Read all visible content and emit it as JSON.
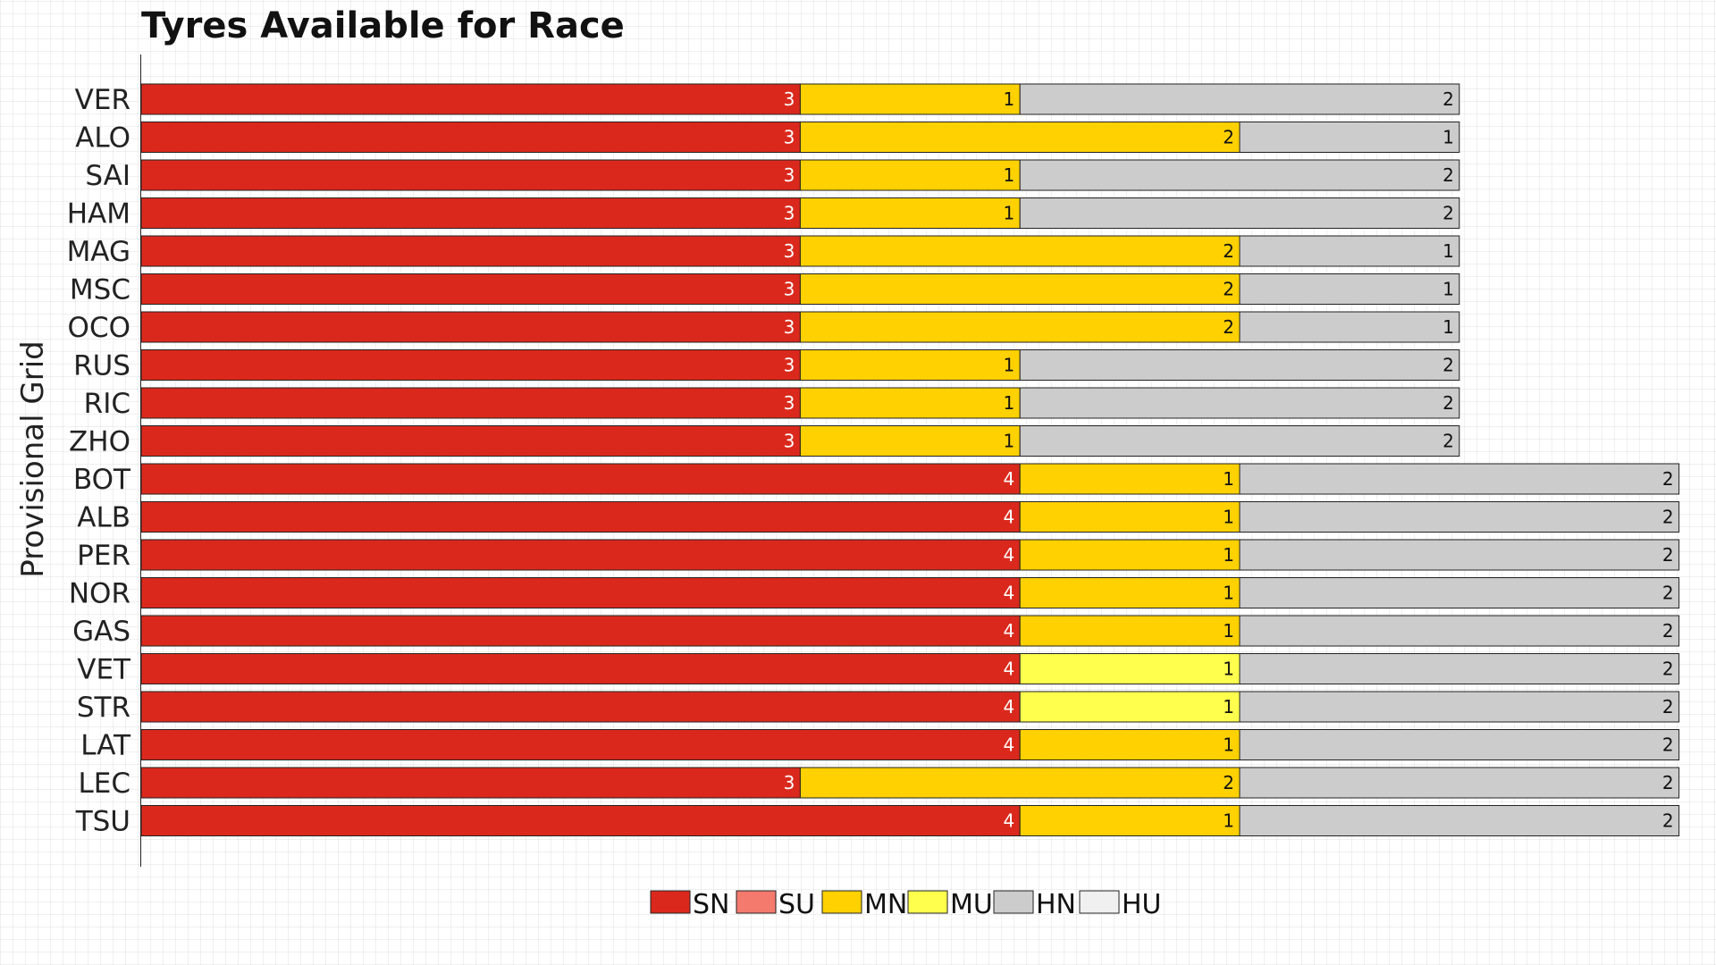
{
  "chart_data": {
    "type": "bar",
    "orientation": "horizontal",
    "stacked": true,
    "title": "Tyres Available for Race",
    "ylabel": "Provisional Grid",
    "xlabel": "",
    "legend_position": "bottom",
    "grid": false,
    "categories": [
      "VER",
      "ALO",
      "SAI",
      "HAM",
      "MAG",
      "MSC",
      "OCO",
      "RUS",
      "RIC",
      "ZHO",
      "BOT",
      "ALB",
      "PER",
      "NOR",
      "GAS",
      "VET",
      "STR",
      "LAT",
      "LEC",
      "TSU"
    ],
    "series": [
      {
        "name": "SN",
        "color": "#DA291C",
        "values": [
          3,
          3,
          3,
          3,
          3,
          3,
          3,
          3,
          3,
          3,
          4,
          4,
          4,
          4,
          4,
          4,
          4,
          4,
          3,
          4
        ]
      },
      {
        "name": "SU",
        "color": "#F47A6E",
        "values": [
          0,
          0,
          0,
          0,
          0,
          0,
          0,
          0,
          0,
          0,
          0,
          0,
          0,
          0,
          0,
          0,
          0,
          0,
          0,
          0
        ]
      },
      {
        "name": "MN",
        "color": "#FFD100",
        "values": [
          1,
          2,
          1,
          1,
          2,
          2,
          2,
          1,
          1,
          1,
          1,
          1,
          1,
          1,
          1,
          0,
          0,
          1,
          2,
          1
        ]
      },
      {
        "name": "MU",
        "color": "#FFFF4D",
        "values": [
          0,
          0,
          0,
          0,
          0,
          0,
          0,
          0,
          0,
          0,
          0,
          0,
          0,
          0,
          0,
          1,
          1,
          0,
          0,
          0
        ]
      },
      {
        "name": "HN",
        "color": "#CCCCCC",
        "values": [
          2,
          1,
          2,
          2,
          1,
          1,
          1,
          2,
          2,
          2,
          2,
          2,
          2,
          2,
          2,
          2,
          2,
          2,
          2,
          2
        ]
      },
      {
        "name": "HU",
        "color": "#F0F0F0",
        "values": [
          0,
          0,
          0,
          0,
          0,
          0,
          0,
          0,
          0,
          0,
          0,
          0,
          0,
          0,
          0,
          0,
          0,
          0,
          0,
          0
        ]
      }
    ]
  }
}
